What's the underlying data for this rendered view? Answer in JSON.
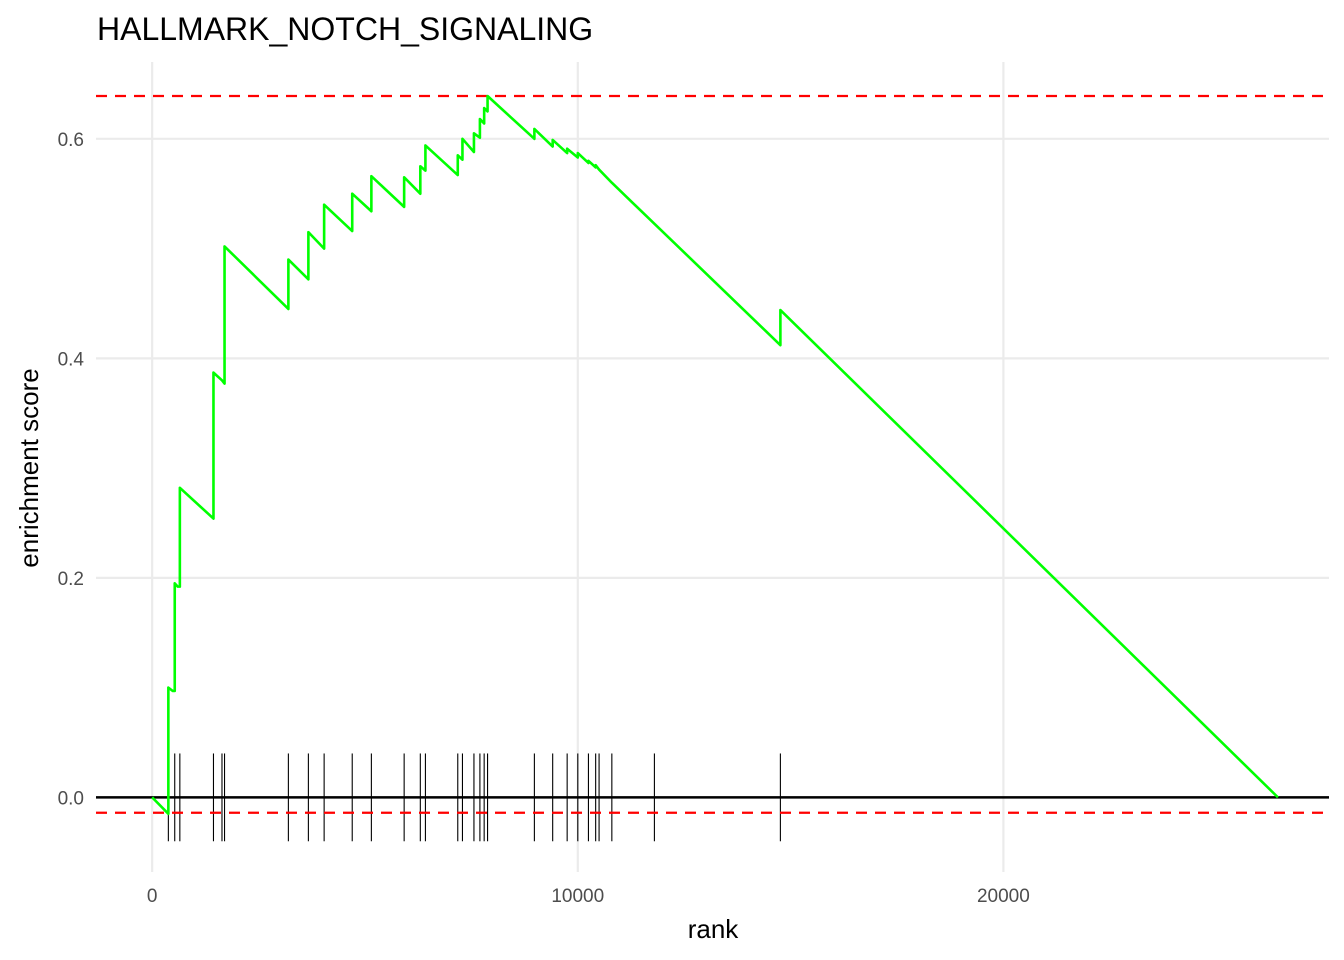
{
  "chart_data": {
    "type": "line",
    "title": "HALLMARK_NOTCH_SIGNALING",
    "xlabel": "rank",
    "ylabel": "enrichment score",
    "xlim": [
      -1320,
      27650
    ],
    "ylim": [
      -0.068,
      0.67
    ],
    "x_ticks": [
      0,
      10000,
      20000
    ],
    "x_tick_labels": [
      "0",
      "10000",
      "20000"
    ],
    "y_ticks": [
      0.0,
      0.2,
      0.4,
      0.6
    ],
    "y_tick_labels": [
      "0.0",
      "0.2",
      "0.4",
      "0.6"
    ],
    "grid": true,
    "legend": "none",
    "colors": {
      "curve": "#00ff00",
      "threshold": "#ff0000",
      "hits": "#000000",
      "zero_line": "#000000"
    },
    "thresholds": {
      "max": 0.639,
      "min": -0.014
    },
    "hit_ranks": [
      380,
      530,
      650,
      1440,
      1640,
      1700,
      3200,
      3670,
      4040,
      4700,
      5150,
      5920,
      6300,
      6420,
      7180,
      7290,
      7560,
      7700,
      7800,
      7880,
      8980,
      9410,
      9750,
      10000,
      10250,
      10420,
      10500,
      10800,
      11800,
      14760
    ],
    "hit_bar_range": [
      -0.04,
      0.04
    ],
    "series": [
      {
        "x": [
          0,
          380,
          380,
          480,
          530,
          530,
          600,
          650,
          650,
          1440,
          1440,
          1440,
          1640,
          1640,
          1700,
          1700,
          1700,
          3200,
          3200,
          3670,
          3670,
          4040,
          4040,
          4700,
          4700,
          5150,
          5150,
          5920,
          5920,
          6300,
          6300,
          6420,
          6420,
          7180,
          7180,
          7290,
          7290,
          7560,
          7560,
          7700,
          7700,
          7800,
          7800,
          7880,
          7880,
          8980,
          8980,
          9410,
          9410,
          9750,
          9750,
          10000,
          10000,
          10250,
          10250,
          10420,
          10420,
          10500,
          10500,
          10800,
          14760,
          14760,
          26450
        ],
        "y": [
          0.0,
          -0.015,
          0.1,
          0.097,
          0.097,
          0.195,
          0.192,
          0.192,
          0.282,
          0.254,
          0.32,
          0.387,
          0.38,
          0.38,
          0.377,
          0.44,
          0.502,
          0.445,
          0.49,
          0.472,
          0.515,
          0.5,
          0.54,
          0.516,
          0.55,
          0.534,
          0.566,
          0.538,
          0.565,
          0.55,
          0.575,
          0.571,
          0.594,
          0.567,
          0.585,
          0.581,
          0.6,
          0.588,
          0.605,
          0.601,
          0.618,
          0.614,
          0.628,
          0.625,
          0.639,
          0.6,
          0.609,
          0.593,
          0.599,
          0.587,
          0.591,
          0.583,
          0.587,
          0.578,
          0.58,
          0.574,
          0.576,
          0.572,
          0.572,
          0.56,
          0.412,
          0.444,
          0.0
        ]
      }
    ]
  }
}
